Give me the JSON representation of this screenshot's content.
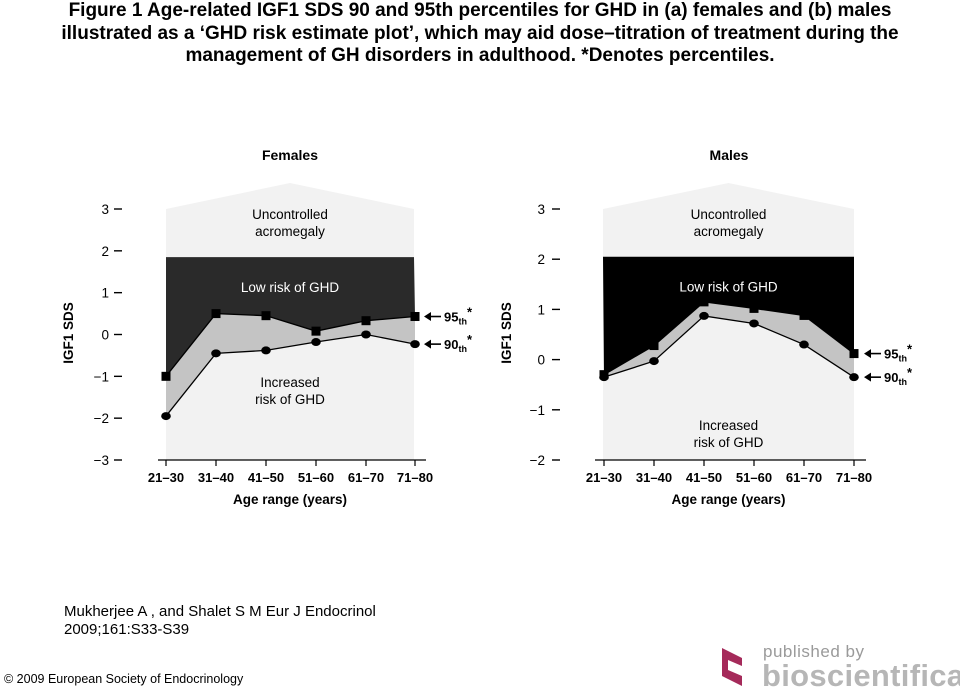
{
  "title_lines": [
    "Figure 1 Age-related IGF1 SDS 90 and 95th percentiles for GHD in (a) females and (b) males",
    "illustrated as a ‘GHD risk estimate plot’, which may aid dose–titration of treatment during the",
    "management of GH disorders in adulthood. *Denotes percentiles."
  ],
  "chart_data": [
    {
      "type": "area",
      "title": "Females",
      "xlabel": "Age range (years)",
      "ylabel": "IGF1 SDS",
      "categories": [
        "21–30",
        "31–40",
        "41–50",
        "51–60",
        "61–70",
        "71–80"
      ],
      "ylim": [
        -3,
        3
      ],
      "yticks": [
        "3",
        "2",
        "1",
        "0",
        "−1",
        "−2",
        "−3"
      ],
      "series": [
        {
          "name": "95th",
          "marker": "square",
          "values": [
            -1.0,
            0.5,
            0.45,
            0.08,
            0.33,
            0.43
          ]
        },
        {
          "name": "90th",
          "marker": "circle",
          "values": [
            -1.95,
            -0.45,
            -0.38,
            -0.18,
            0.0,
            -0.23
          ]
        }
      ],
      "region_top": 1.85,
      "zones": {
        "upper": [
          "Uncontrolled",
          "acromegaly"
        ],
        "middle": "Low risk of GHD",
        "lower": [
          "Increased",
          "risk of GHD"
        ]
      },
      "legend": [
        {
          "text": "95th",
          "sup": "th",
          "base": "95",
          "star": "*"
        },
        {
          "text": "90th",
          "sup": "th",
          "base": "90",
          "star": "*"
        }
      ],
      "colors": {
        "dark": "#2a2a2a",
        "band": "#c4c4c4",
        "light": "#f2f2f2"
      }
    },
    {
      "type": "area",
      "title": "Males",
      "xlabel": "Age range (years)",
      "ylabel": "IGF1 SDS",
      "categories": [
        "21–30",
        "31–40",
        "41–50",
        "51–60",
        "61–70",
        "71–80"
      ],
      "ylim": [
        -2,
        3
      ],
      "yticks": [
        "3",
        "2",
        "1",
        "0",
        "−1",
        "−2"
      ],
      "series": [
        {
          "name": "95th",
          "marker": "square",
          "values": [
            -0.3,
            0.28,
            1.15,
            1.02,
            0.88,
            0.12
          ]
        },
        {
          "name": "90th",
          "marker": "circle",
          "values": [
            -0.35,
            -0.03,
            0.87,
            0.72,
            0.3,
            -0.35
          ]
        }
      ],
      "region_top": 2.05,
      "zones": {
        "upper": [
          "Uncontrolled",
          "acromegaly"
        ],
        "middle": "Low risk of GHD",
        "lower": [
          "Increased",
          "risk of GHD"
        ]
      },
      "legend": [
        {
          "text": "95th",
          "sup": "th",
          "base": "95",
          "star": "*"
        },
        {
          "text": "90th",
          "sup": "th",
          "base": "90",
          "star": "*"
        }
      ],
      "colors": {
        "dark": "#000000",
        "band": "#c4c4c4",
        "light": "#f2f2f2"
      }
    }
  ],
  "citation_lines": [
    "Mukherjee A , and Shalet S M Eur J Endocrinol",
    "2009;161:S33-S39"
  ],
  "copyright": "© 2009 European Society of Endocrinology",
  "publisher": {
    "small": "published by",
    "big": "bioscientifica",
    "logo_color": "#a52a5a"
  }
}
